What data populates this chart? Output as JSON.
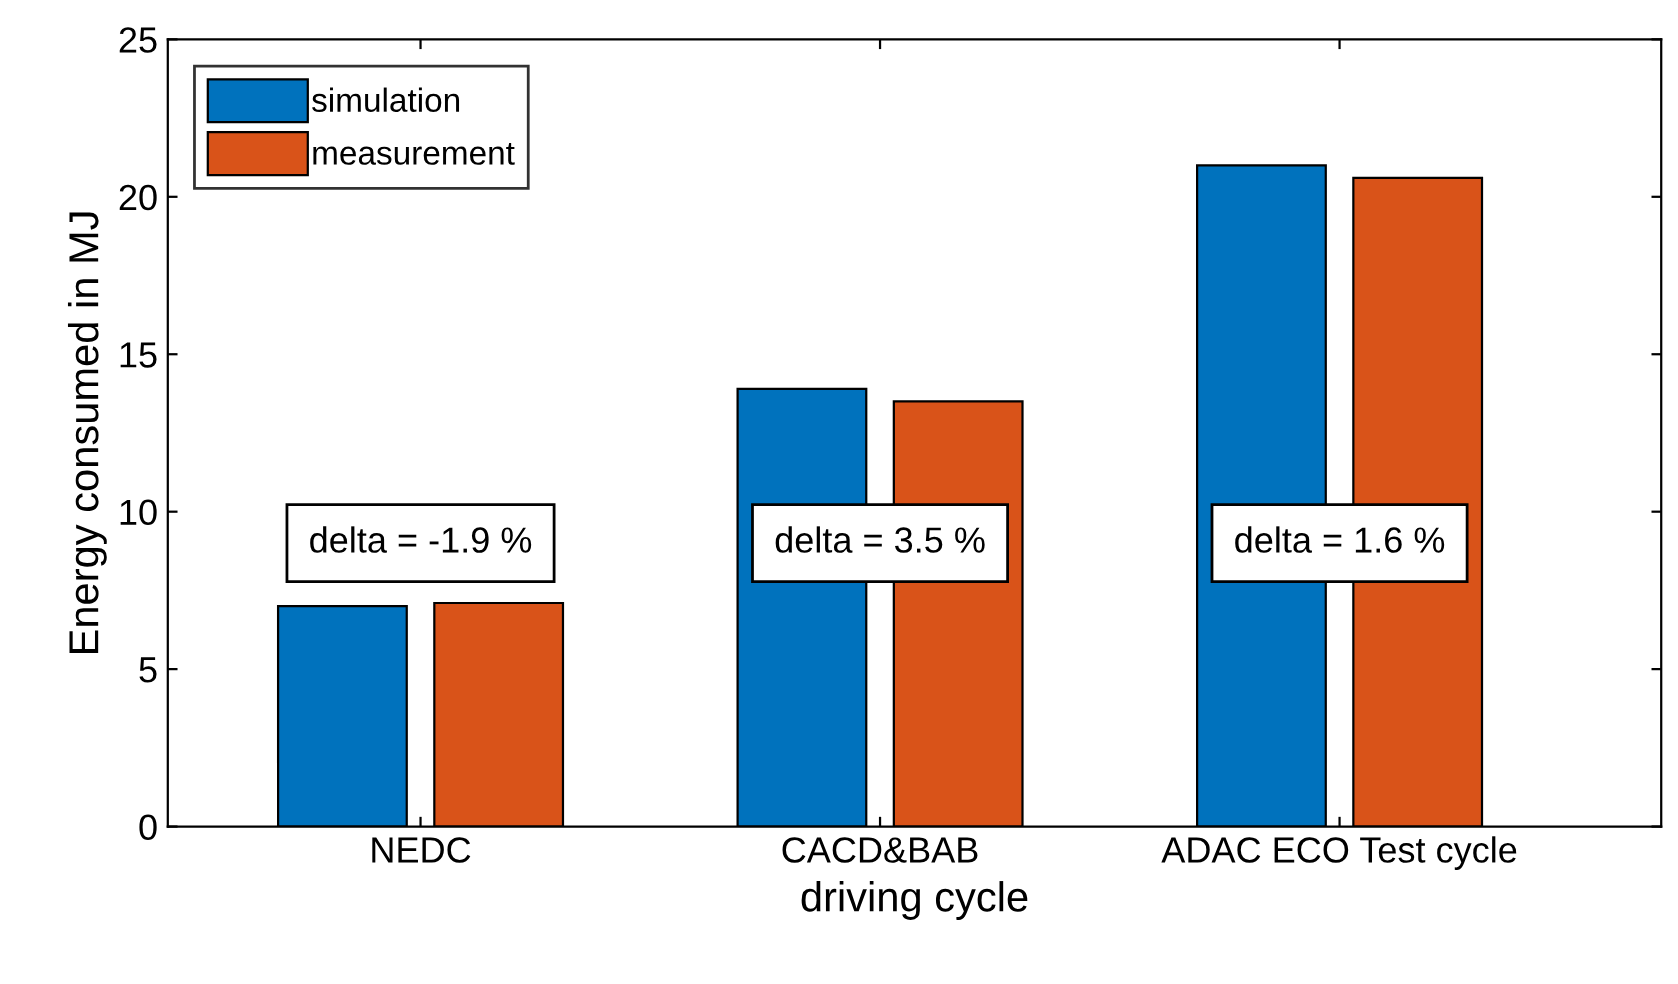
{
  "chart_data": {
    "type": "bar",
    "xlabel": "driving cycle",
    "ylabel": "Energy consumed in MJ",
    "categories": [
      "NEDC",
      "CACD&BAB",
      "ADAC ECO Test cycle"
    ],
    "series": [
      {
        "name": "simulation",
        "color": "#0072bd",
        "values": [
          7.0,
          13.9,
          21.0
        ]
      },
      {
        "name": "measurement",
        "color": "#d95319",
        "values": [
          7.1,
          13.5,
          20.6
        ]
      }
    ],
    "ylim": [
      0,
      25
    ],
    "yticks": [
      0,
      5,
      10,
      15,
      20,
      25
    ],
    "grid": false,
    "legend": "top left",
    "annotations": [
      "delta = -1.9 %",
      "delta = 3.5 %",
      "delta = 1.6 %"
    ]
  }
}
